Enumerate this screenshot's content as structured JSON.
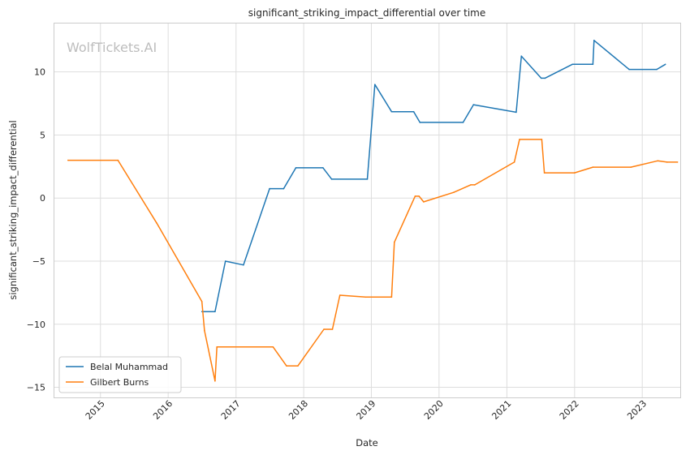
{
  "chart_data": {
    "type": "line",
    "title": "significant_striking_impact_differential over time",
    "xlabel": "Date",
    "ylabel": "significant_striking_impact_differential",
    "watermark": "WolfTickets.AI",
    "xlim": [
      "2014-04-23",
      "2023-07-25"
    ],
    "ylim": [
      -15.8,
      13.9
    ],
    "x_ticks": [
      "2015",
      "2016",
      "2017",
      "2018",
      "2019",
      "2020",
      "2021",
      "2022",
      "2023"
    ],
    "y_ticks": [
      -15,
      -10,
      -5,
      0,
      5,
      10
    ],
    "y_tick_labels": [
      "−15",
      "−10",
      "−5",
      "0",
      "5",
      "10"
    ],
    "grid": true,
    "legend_position": "lower-left",
    "series": [
      {
        "name": "Belal Muhammad",
        "color": "#1f77b4",
        "points": [
          [
            "2016-07-01",
            -9.0
          ],
          [
            "2016-09-10",
            -9.0
          ],
          [
            "2016-11-05",
            -5.0
          ],
          [
            "2017-02-10",
            -5.3
          ],
          [
            "2017-07-01",
            0.75
          ],
          [
            "2017-09-15",
            0.75
          ],
          [
            "2017-11-20",
            2.4
          ],
          [
            "2018-04-15",
            2.4
          ],
          [
            "2018-06-01",
            1.5
          ],
          [
            "2018-12-10",
            1.5
          ],
          [
            "2019-01-20",
            9.0
          ],
          [
            "2019-04-20",
            6.85
          ],
          [
            "2019-08-17",
            6.85
          ],
          [
            "2019-09-20",
            6.0
          ],
          [
            "2020-05-10",
            6.0
          ],
          [
            "2020-07-05",
            7.4
          ],
          [
            "2021-02-20",
            6.8
          ],
          [
            "2021-03-20",
            11.25
          ],
          [
            "2021-07-05",
            9.5
          ],
          [
            "2021-07-25",
            9.5
          ],
          [
            "2021-12-20",
            10.6
          ],
          [
            "2022-04-10",
            10.6
          ],
          [
            "2022-04-16",
            12.5
          ],
          [
            "2022-10-22",
            10.2
          ],
          [
            "2023-03-20",
            10.2
          ],
          [
            "2023-05-06",
            10.6
          ]
        ]
      },
      {
        "name": "Gilbert Burns",
        "color": "#ff7f0e",
        "points": [
          [
            "2014-07-10",
            3.0
          ],
          [
            "2015-04-05",
            3.0
          ],
          [
            "2015-11-01",
            -2.0
          ],
          [
            "2016-07-01",
            -8.2
          ],
          [
            "2016-07-15",
            -10.5
          ],
          [
            "2016-09-10",
            -14.5
          ],
          [
            "2016-09-20",
            -11.8
          ],
          [
            "2017-07-20",
            -11.8
          ],
          [
            "2017-09-30",
            -13.3
          ],
          [
            "2017-12-01",
            -13.3
          ],
          [
            "2018-04-20",
            -10.4
          ],
          [
            "2018-06-05",
            -10.4
          ],
          [
            "2018-07-15",
            -7.7
          ],
          [
            "2018-12-01",
            -7.85
          ],
          [
            "2019-04-20",
            -7.85
          ],
          [
            "2019-05-05",
            -3.5
          ],
          [
            "2019-08-25",
            0.15
          ],
          [
            "2019-09-15",
            0.15
          ],
          [
            "2019-10-10",
            -0.3
          ],
          [
            "2020-03-20",
            0.45
          ],
          [
            "2020-06-20",
            1.05
          ],
          [
            "2020-07-12",
            1.05
          ],
          [
            "2021-02-10",
            2.85
          ],
          [
            "2021-03-10",
            4.65
          ],
          [
            "2021-07-08",
            4.65
          ],
          [
            "2021-07-22",
            2.0
          ],
          [
            "2022-01-01",
            2.0
          ],
          [
            "2022-04-10",
            2.45
          ],
          [
            "2022-11-01",
            2.45
          ],
          [
            "2023-03-25",
            2.95
          ],
          [
            "2023-05-15",
            2.85
          ],
          [
            "2023-07-10",
            2.85
          ]
        ]
      }
    ]
  }
}
